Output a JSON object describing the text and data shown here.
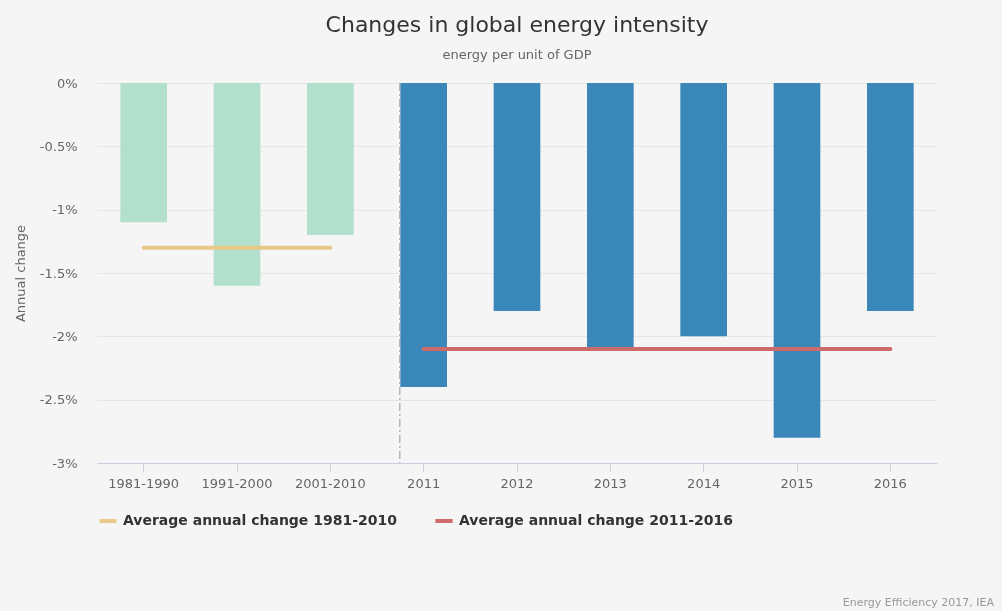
{
  "chart_data": {
    "type": "bar",
    "title": "Changes in global energy intensity",
    "subtitle": "energy per unit of GDP",
    "ylabel": "Annual change",
    "categories": [
      "1981-1990",
      "1991-2000",
      "2001-2010",
      "2011",
      "2012",
      "2013",
      "2014",
      "2015",
      "2016"
    ],
    "series": [
      {
        "type": "bar",
        "colors": [
          "#b3e0cc",
          "#b3e0cc",
          "#b3e0cc",
          "#3a87b9",
          "#3a87b9",
          "#3a87b9",
          "#3a87b9",
          "#3a87b9",
          "#3a87b9"
        ],
        "values": [
          -1.1,
          -1.6,
          -1.2,
          -2.4,
          -1.8,
          -2.1,
          -2.0,
          -2.8,
          -1.8
        ]
      },
      {
        "type": "line",
        "name": "Average annual change 1981-2010",
        "color": "#e8c98a",
        "values": [
          -1.3,
          -1.3,
          -1.3,
          null,
          null,
          null,
          null,
          null,
          null
        ]
      },
      {
        "type": "line",
        "name": "Average annual change 2011-2016",
        "color": "#cd6b6b",
        "values": [
          null,
          null,
          null,
          -2.1,
          -2.1,
          -2.1,
          -2.1,
          -2.1,
          -2.1
        ]
      }
    ],
    "ylim": [
      -3,
      0
    ],
    "yticks": [
      {
        "value": 0,
        "label": "0%"
      },
      {
        "value": -0.5,
        "label": "-0.5%"
      },
      {
        "value": -1,
        "label": "-1%"
      },
      {
        "value": -1.5,
        "label": "-1.5%"
      },
      {
        "value": -2,
        "label": "-2%"
      },
      {
        "value": -2.5,
        "label": "-2.5%"
      },
      {
        "value": -3,
        "label": "-3%"
      }
    ],
    "ref_lines": [
      {
        "axis": "x",
        "value": "2011",
        "color": "#999999",
        "line_style": "dashed"
      }
    ],
    "grid": "y",
    "legend": "bottom",
    "annotations": [
      "Energy Efficiency 2017, IEA"
    ]
  }
}
